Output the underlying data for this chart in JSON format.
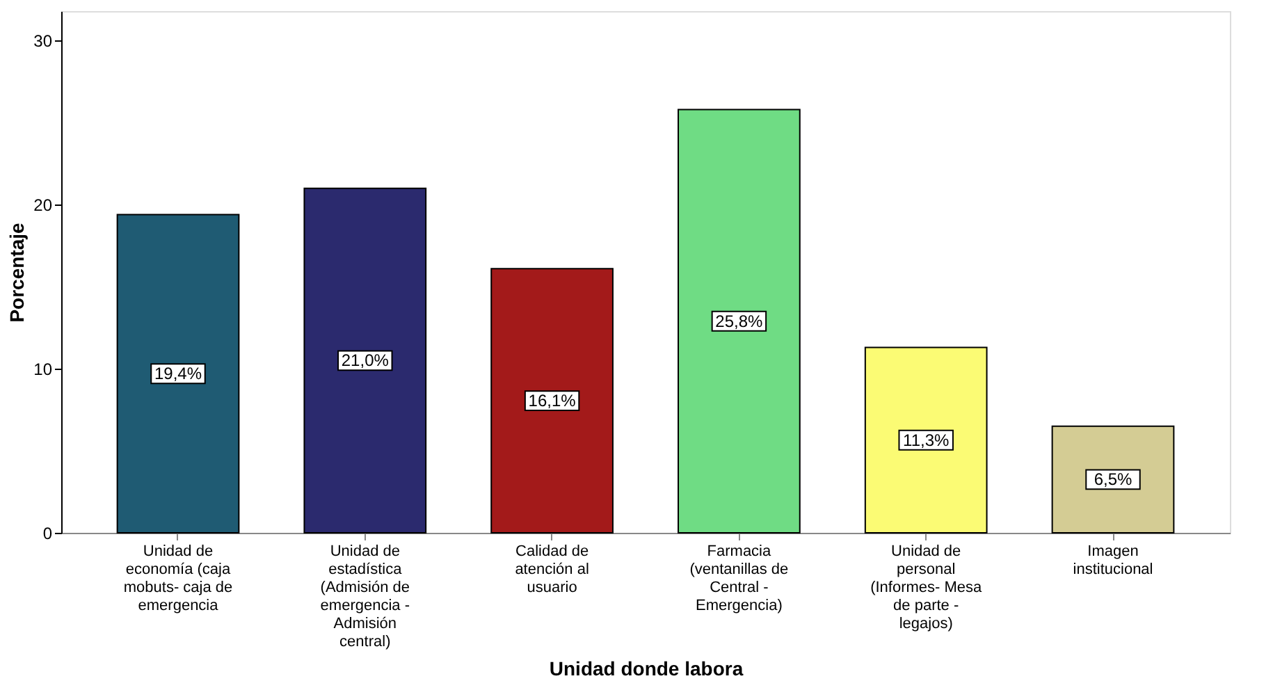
{
  "chart_data": {
    "type": "bar",
    "xlabel": "Unidad donde labora",
    "ylabel": "Porcentaje",
    "categories": [
      "Unidad de economía (caja mobuts- caja de emergencia",
      "Unidad de estadística (Admisión de emergencia - Admisión central)",
      "Calidad de atención al usuario",
      "Farmacia (ventanillas de Central - Emergencia)",
      "Unidad de personal (Informes- Mesa de parte - legajos)",
      "Imagen institucional"
    ],
    "values": [
      19.4,
      21.0,
      16.1,
      25.8,
      11.3,
      6.5
    ],
    "colors": [
      "#1f5b73",
      "#2b2a6e",
      "#a31a1a",
      "#6fdc84",
      "#fbfb74",
      "#d4cc94"
    ],
    "value_labels": [
      "19,4%",
      "21,0%",
      "16,1%",
      "25,8%",
      "11,3%",
      "6,5%"
    ],
    "ylim": [
      0,
      31.8
    ],
    "yticks": [
      0,
      10,
      20,
      30
    ],
    "grid": false
  }
}
